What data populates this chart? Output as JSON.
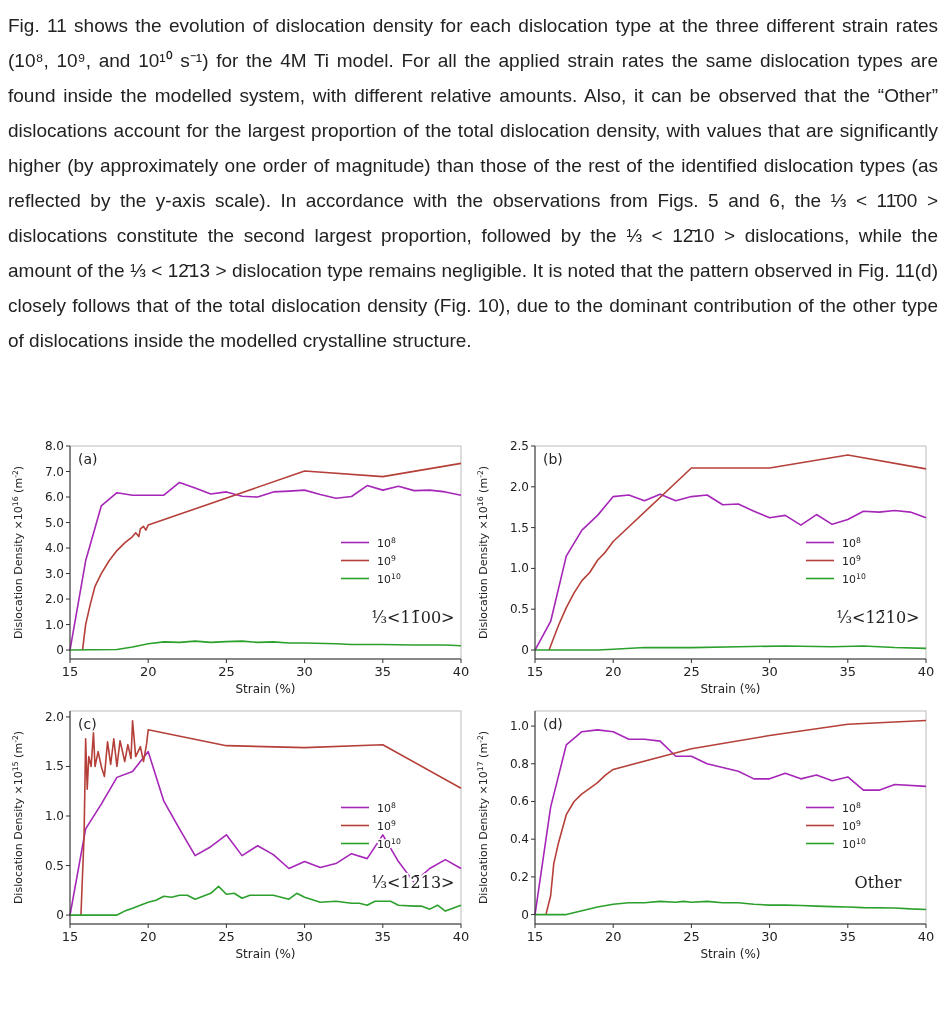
{
  "chart_data": [
    {
      "type": "other",
      "annotations": [
        "Fig. 11 shows the evolution of dislocation density for each dislocation type at the three different strain rates (10⁸, 10⁹, and 10¹⁰ s⁻¹) for the 4M Ti model. For all the applied strain rates the same dislocation types are found inside the modelled system, with different relative amounts. Also, it can be observed that the “Other” dislocations account for the largest proportion of the total dislocation density, with values that are significantly higher (by approximately one order of magnitude) than those of the rest of the identified dislocation types (as reflected by the y-axis scale). In accordance with the observations from Figs. 5 and 6, the ⅓ < 11̄00 > dislocations constitute the second largest proportion, followed by the ⅓ < 12̄10 > dislocations, while the amount of the ⅓ < 12̄13 > dislocation type remains negligible. It is noted that the pattern observed in Fig. 11(d) closely follows that of the total dislocation density (Fig. 10), due to the dominant contribution of the other type of dislocations inside the modelled crystalline structure."
      ]
    },
    {
      "type": "line",
      "xlabel": "Strain (%)",
      "ylabel": "Dislocation Density ×10$^{16}$ (m$^{-2}$)",
      "xlim": [
        15,
        40
      ],
      "xticks": [
        15,
        20,
        25,
        30,
        35,
        40
      ],
      "ylim": [
        -0.35,
        8.0
      ],
      "yticks": [
        0,
        {
          "value": 1,
          "label": "1.0"
        },
        {
          "value": 2,
          "label": "2.0"
        },
        {
          "value": 3,
          "label": "3.0"
        },
        {
          "value": 4,
          "label": "4.0"
        },
        {
          "value": 5,
          "label": "5.0"
        },
        {
          "value": 6,
          "label": "6.0"
        },
        {
          "value": 7,
          "label": "7.0"
        },
        {
          "value": 8,
          "label": "8.0"
        }
      ],
      "legend": "right",
      "annotations": [
        "(a)",
        "⅓<11̄00>"
      ],
      "series": [
        {
          "name": "10$^{8}$",
          "color": "#a626b8",
          "x": [
            15,
            16,
            17,
            18,
            19,
            20,
            21,
            22,
            23,
            24,
            25,
            26,
            27,
            28,
            29,
            30,
            31,
            32,
            33,
            34,
            35,
            36,
            37,
            38,
            39,
            40
          ],
          "values": [
            0,
            3.5,
            5.65,
            6.17,
            6.07,
            6.07,
            6.07,
            6.57,
            6.35,
            6.12,
            6.2,
            6.03,
            6.0,
            6.2,
            6.23,
            6.27,
            6.1,
            5.95,
            6.02,
            6.45,
            6.27,
            6.42,
            6.25,
            6.27,
            6.2,
            6.07
          ]
        },
        {
          "name": "10$^{9}$",
          "color": "#b5403a",
          "x": [
            15.8,
            16,
            16.3,
            16.6,
            17,
            17.5,
            18,
            18.5,
            18.8,
            19,
            19.2,
            19.4,
            19.5,
            19.7,
            19.85,
            20,
            30,
            35,
            40
          ],
          "values": [
            0,
            1.0,
            1.8,
            2.5,
            3.0,
            3.5,
            3.9,
            4.2,
            4.35,
            4.45,
            4.6,
            4.45,
            4.75,
            4.85,
            4.7,
            4.9,
            7.02,
            6.8,
            7.32
          ]
        },
        {
          "name": "10$^{10}$",
          "color": "#2ca02c",
          "x": [
            15,
            18,
            19,
            20,
            21,
            22,
            23,
            24,
            25,
            26,
            27,
            28,
            29,
            30,
            32,
            33,
            35,
            37,
            39,
            40
          ],
          "values": [
            0,
            0.02,
            0.12,
            0.25,
            0.32,
            0.3,
            0.35,
            0.3,
            0.33,
            0.35,
            0.3,
            0.32,
            0.28,
            0.28,
            0.25,
            0.22,
            0.22,
            0.2,
            0.2,
            0.17
          ]
        }
      ]
    },
    {
      "type": "line",
      "xlabel": "Strain (%)",
      "ylabel": "Dislocation Density ×10$^{16}$ (m$^{-2}$)",
      "xlim": [
        15,
        40
      ],
      "xticks": [
        15,
        20,
        25,
        30,
        35,
        40
      ],
      "ylim": [
        -0.11,
        2.5
      ],
      "yticks": [
        0,
        0.5,
        {
          "value": 1,
          "label": "1.0"
        },
        1.5,
        {
          "value": 2,
          "label": "2.0"
        },
        2.5
      ],
      "legend": "right",
      "annotations": [
        "(b)",
        "⅓<12̄10>"
      ],
      "series": [
        {
          "name": "10$^{8}$",
          "color": "#a626b8",
          "x": [
            15,
            16,
            17,
            18,
            19,
            20,
            21,
            22,
            23,
            24,
            25,
            26,
            27,
            28,
            29,
            30,
            31,
            32,
            33,
            34,
            35,
            36,
            37,
            38,
            39,
            40
          ],
          "values": [
            0,
            0.35,
            1.15,
            1.47,
            1.65,
            1.88,
            1.9,
            1.83,
            1.91,
            1.83,
            1.88,
            1.9,
            1.78,
            1.79,
            1.7,
            1.62,
            1.65,
            1.53,
            1.66,
            1.54,
            1.6,
            1.7,
            1.69,
            1.71,
            1.69,
            1.62
          ]
        },
        {
          "name": "10$^{9}$",
          "color": "#b5403a",
          "x": [
            15.9,
            16.5,
            17,
            17.5,
            18,
            18.5,
            19,
            19.5,
            20,
            25,
            30,
            35,
            40
          ],
          "values": [
            0,
            0.3,
            0.52,
            0.7,
            0.85,
            0.95,
            1.1,
            1.2,
            1.33,
            2.23,
            2.23,
            2.39,
            2.22
          ]
        },
        {
          "name": "10$^{10}$",
          "color": "#2ca02c",
          "x": [
            15,
            19,
            20,
            22,
            25,
            28,
            31,
            34,
            36,
            38,
            40
          ],
          "values": [
            0,
            0,
            0.01,
            0.03,
            0.03,
            0.04,
            0.05,
            0.04,
            0.05,
            0.03,
            0.02
          ]
        }
      ]
    },
    {
      "type": "line",
      "xlabel": "Strain (%)",
      "ylabel": "Dislocation Density ×10$^{15}$ (m$^{-2}$)",
      "xlim": [
        15,
        40
      ],
      "xticks": [
        15,
        20,
        25,
        30,
        35,
        40
      ],
      "ylim": [
        -0.09,
        2.06
      ],
      "yticks": [
        0,
        0.5,
        {
          "value": 1,
          "label": "1.0"
        },
        1.5,
        {
          "value": 2,
          "label": "2.0"
        }
      ],
      "legend": "right",
      "annotations": [
        "(c)",
        "⅓<12̄13>"
      ],
      "series": [
        {
          "name": "10$^{8}$",
          "color": "#a626b8",
          "x": [
            15,
            16,
            17,
            18,
            19,
            20,
            21,
            22,
            23,
            24,
            25,
            26,
            27,
            28,
            29,
            30,
            31,
            32,
            33,
            34,
            35,
            36,
            37,
            38,
            39,
            40
          ],
          "values": [
            0,
            0.87,
            1.12,
            1.39,
            1.45,
            1.65,
            1.15,
            0.87,
            0.6,
            0.69,
            0.81,
            0.6,
            0.7,
            0.61,
            0.47,
            0.54,
            0.48,
            0.52,
            0.62,
            0.57,
            0.81,
            0.54,
            0.33,
            0.47,
            0.56,
            0.47
          ]
        },
        {
          "name": "10$^{9}$",
          "color": "#b5403a",
          "x": [
            15.7,
            15.9,
            16,
            16.1,
            16.2,
            16.35,
            16.5,
            16.6,
            16.8,
            17,
            17.2,
            17.4,
            17.6,
            17.8,
            18,
            18.2,
            18.5,
            18.7,
            18.9,
            19,
            19.2,
            19.5,
            19.7,
            19.9,
            20,
            25,
            30,
            35,
            40
          ],
          "values": [
            0,
            0.8,
            1.78,
            1.27,
            1.6,
            1.5,
            1.84,
            1.5,
            1.65,
            1.5,
            1.4,
            1.75,
            1.52,
            1.78,
            1.5,
            1.76,
            1.55,
            1.72,
            1.58,
            1.96,
            1.6,
            1.7,
            1.55,
            1.73,
            1.87,
            1.71,
            1.69,
            1.72,
            1.28
          ]
        },
        {
          "name": "10$^{10}$",
          "color": "#2ca02c",
          "x": [
            15,
            18,
            18.5,
            19,
            20,
            20.5,
            21,
            21.5,
            22,
            22.5,
            23,
            24,
            24.5,
            25,
            25.5,
            26,
            26.5,
            27.5,
            28,
            29,
            29.5,
            30,
            31,
            32,
            33,
            33.5,
            34,
            34.5,
            35,
            35.5,
            36,
            37,
            37.5,
            38,
            38.5,
            39,
            40
          ],
          "values": [
            0,
            0,
            0.04,
            0.07,
            0.13,
            0.15,
            0.19,
            0.18,
            0.2,
            0.2,
            0.16,
            0.22,
            0.29,
            0.21,
            0.22,
            0.17,
            0.2,
            0.2,
            0.2,
            0.16,
            0.22,
            0.18,
            0.13,
            0.14,
            0.12,
            0.12,
            0.1,
            0.14,
            0.14,
            0.14,
            0.1,
            0.09,
            0.09,
            0.06,
            0.1,
            0.04,
            0.1
          ]
        }
      ]
    },
    {
      "type": "line",
      "xlabel": "Strain (%)",
      "ylabel": "Dislocation Density ×10$^{17}$ (m$^{-2}$)",
      "xlim": [
        15,
        40
      ],
      "xticks": [
        15,
        20,
        25,
        30,
        35,
        40
      ],
      "ylim": [
        -0.05,
        1.08
      ],
      "yticks": [
        0,
        0.2,
        0.4,
        0.6,
        0.8,
        {
          "value": 1,
          "label": "1.0"
        }
      ],
      "legend": "right",
      "annotations": [
        "(d)",
        "Other"
      ],
      "series": [
        {
          "name": "10$^{8}$",
          "color": "#a626b8",
          "x": [
            15,
            16,
            17,
            18,
            19,
            20,
            21,
            22,
            23,
            24,
            25,
            26,
            27,
            28,
            29,
            30,
            31,
            32,
            33,
            34,
            35,
            36,
            37,
            38,
            40
          ],
          "values": [
            0,
            0.57,
            0.9,
            0.97,
            0.98,
            0.97,
            0.93,
            0.93,
            0.92,
            0.84,
            0.84,
            0.8,
            0.78,
            0.76,
            0.72,
            0.72,
            0.75,
            0.72,
            0.74,
            0.71,
            0.73,
            0.66,
            0.66,
            0.69,
            0.68
          ]
        },
        {
          "name": "10$^{9}$",
          "color": "#b5403a",
          "x": [
            15.7,
            16,
            16.2,
            16.5,
            17,
            17.5,
            18,
            18.5,
            19,
            19.5,
            20,
            25,
            30,
            35,
            40
          ],
          "values": [
            0,
            0.1,
            0.27,
            0.38,
            0.53,
            0.6,
            0.64,
            0.67,
            0.7,
            0.74,
            0.77,
            0.88,
            0.95,
            1.01,
            1.03
          ]
        },
        {
          "name": "10$^{10}$",
          "color": "#2ca02c",
          "x": [
            15,
            17,
            18,
            19,
            20,
            21,
            22,
            23,
            24,
            24.5,
            25,
            26,
            27,
            28,
            29,
            30,
            31,
            32,
            33,
            34,
            35,
            36,
            38,
            39,
            40
          ],
          "values": [
            0,
            0,
            0.02,
            0.04,
            0.055,
            0.063,
            0.063,
            0.07,
            0.065,
            0.07,
            0.065,
            0.07,
            0.063,
            0.063,
            0.055,
            0.05,
            0.05,
            0.048,
            0.045,
            0.042,
            0.04,
            0.037,
            0.035,
            0.03,
            0.027
          ]
        }
      ]
    }
  ]
}
